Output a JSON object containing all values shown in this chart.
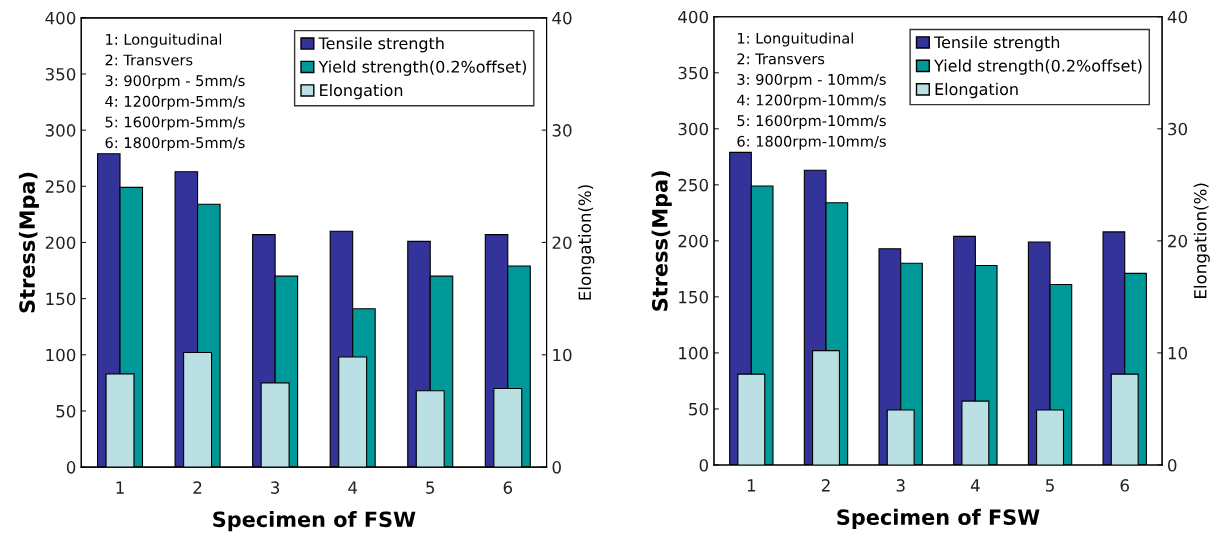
{
  "chart_data": [
    {
      "type": "bar",
      "xlabel": "Specimen of FSW",
      "ylabel": "Stress(Mpa)",
      "y2label": "Elongation(%)",
      "categories": [
        "1",
        "2",
        "3",
        "4",
        "5",
        "6"
      ],
      "series": [
        {
          "name": "Tensile strength",
          "color": "#333399",
          "values": [
            279,
            263,
            207,
            210,
            201,
            207
          ]
        },
        {
          "name": "Yield strength(0.2%offset)",
          "color": "#009999",
          "values": [
            249,
            234,
            170,
            141,
            170,
            179
          ]
        },
        {
          "name": "Elongation",
          "color": "#bbe0e3",
          "axis": "y2",
          "values": [
            8.3,
            10.2,
            7.5,
            9.8,
            6.8,
            7.0
          ]
        }
      ],
      "ylim": [
        0,
        400
      ],
      "yticks": [
        0,
        50,
        100,
        150,
        200,
        250,
        300,
        350,
        400
      ],
      "y2lim": [
        0,
        40
      ],
      "y2ticks": [
        0,
        10,
        20,
        30,
        40
      ],
      "annotations": [
        "1: Longuitudinal",
        "2: Transvers",
        "3: 900rpm - 5mm/s",
        "4: 1200rpm-5mm/s",
        "5: 1600rpm-5mm/s",
        "6: 1800rpm-5mm/s"
      ],
      "legend": "top right",
      "grid": false
    },
    {
      "type": "bar",
      "xlabel": "Specimen of FSW",
      "ylabel": "Stress(Mpa)",
      "y2label": "Elongation(%)",
      "categories": [
        "1",
        "2",
        "3",
        "4",
        "5",
        "6"
      ],
      "series": [
        {
          "name": "Tensile strength",
          "color": "#333399",
          "values": [
            279,
            263,
            193,
            204,
            199,
            208
          ]
        },
        {
          "name": "Yield strength(0.2%offset)",
          "color": "#009999",
          "values": [
            249,
            234,
            180,
            178,
            161,
            171
          ]
        },
        {
          "name": "Elongation",
          "color": "#bbe0e3",
          "axis": "y2",
          "values": [
            8.1,
            10.2,
            4.9,
            5.7,
            4.9,
            8.1
          ]
        }
      ],
      "ylim": [
        0,
        400
      ],
      "yticks": [
        0,
        50,
        100,
        150,
        200,
        250,
        300,
        350,
        400
      ],
      "y2lim": [
        0,
        40
      ],
      "y2ticks": [
        0,
        10,
        20,
        30,
        40
      ],
      "annotations": [
        "1: Longuitudinal",
        "2: Transvers",
        "3: 900rpm - 10mm/s",
        "4: 1200rpm-10mm/s",
        "5: 1600rpm-10mm/s",
        "6: 1800rpm-10mm/s"
      ],
      "legend": "top right",
      "grid": false
    }
  ]
}
